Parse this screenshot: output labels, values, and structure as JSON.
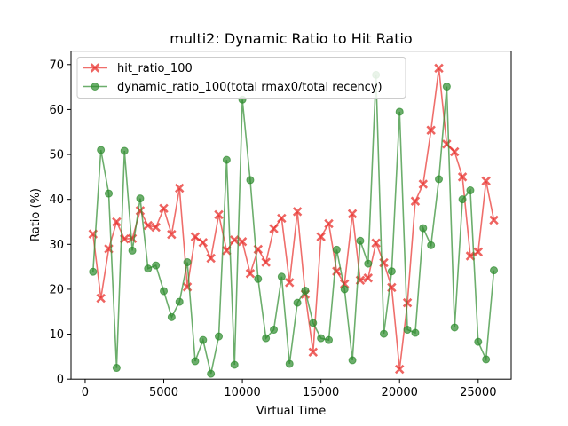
{
  "chart_data": {
    "type": "line",
    "title": "multi2: Dynamic Ratio to Hit Ratio",
    "xlabel": "Virtual Time",
    "ylabel": "Ratio (%)",
    "xlim": [
      -900,
      27100
    ],
    "ylim": [
      0,
      73
    ],
    "xticks": [
      0,
      5000,
      10000,
      15000,
      20000,
      25000
    ],
    "yticks": [
      0,
      10,
      20,
      30,
      40,
      50,
      60,
      70
    ],
    "grid": false,
    "legend_position": "upper-left",
    "series": [
      {
        "name": "hit_ratio_100",
        "color": "#e8302c",
        "marker": "x",
        "x": [
          500,
          1000,
          1500,
          2000,
          2500,
          3000,
          3500,
          4000,
          4500,
          5000,
          5500,
          6000,
          6500,
          7000,
          7500,
          8000,
          8500,
          9000,
          9500,
          10000,
          10500,
          11000,
          11500,
          12000,
          12500,
          13000,
          13500,
          14000,
          14500,
          15000,
          15500,
          16000,
          16500,
          17000,
          17500,
          18000,
          18500,
          19000,
          19500,
          20000,
          20500,
          21000,
          21500,
          22000,
          22500,
          23000,
          23500,
          24000,
          24500,
          25000,
          25500,
          26000
        ],
        "values": [
          32.3,
          18.0,
          29.0,
          35.0,
          31.2,
          31.3,
          37.5,
          34.2,
          33.8,
          38.0,
          32.2,
          42.5,
          20.5,
          31.7,
          30.4,
          26.9,
          36.6,
          28.6,
          31.0,
          30.6,
          23.5,
          28.9,
          26.0,
          33.5,
          35.8,
          21.5,
          37.3,
          18.9,
          6.0,
          31.7,
          34.6,
          24.0,
          21.2,
          36.8,
          22.0,
          22.5,
          30.3,
          25.9,
          20.4,
          2.2,
          17.0,
          39.6,
          43.4,
          55.4,
          69.2,
          52.3,
          50.6,
          45.0,
          27.4,
          28.3,
          44.1,
          35.4
        ]
      },
      {
        "name": "dynamic_ratio_100(total rmax0/total recency)",
        "color": "#2e8b2e",
        "marker": "o",
        "x": [
          500,
          1000,
          1500,
          2000,
          2500,
          3000,
          3500,
          4000,
          4500,
          5000,
          5500,
          6000,
          6500,
          7000,
          7500,
          8000,
          8500,
          9000,
          9500,
          10000,
          10500,
          11000,
          11500,
          12000,
          12500,
          13000,
          13500,
          14000,
          14500,
          15000,
          15500,
          16000,
          16500,
          17000,
          17500,
          18000,
          18500,
          19000,
          19500,
          20000,
          20500,
          21000,
          21500,
          22000,
          22500,
          23000,
          23500,
          24000,
          24500,
          25000,
          25500,
          26000
        ],
        "values": [
          23.9,
          51.0,
          41.3,
          2.5,
          50.8,
          28.6,
          40.2,
          24.6,
          25.3,
          19.6,
          13.8,
          17.2,
          26.0,
          4.0,
          8.7,
          1.2,
          9.5,
          48.8,
          3.2,
          62.2,
          44.3,
          22.3,
          9.1,
          11.0,
          22.8,
          3.4,
          17.0,
          19.7,
          12.5,
          9.1,
          8.7,
          28.8,
          20.0,
          4.2,
          30.8,
          25.7,
          67.7,
          10.1,
          24.0,
          59.5,
          11.0,
          10.3,
          33.6,
          29.8,
          44.5,
          65.1,
          11.5,
          40.0,
          42.0,
          8.3,
          4.4,
          24.2
        ]
      }
    ]
  }
}
